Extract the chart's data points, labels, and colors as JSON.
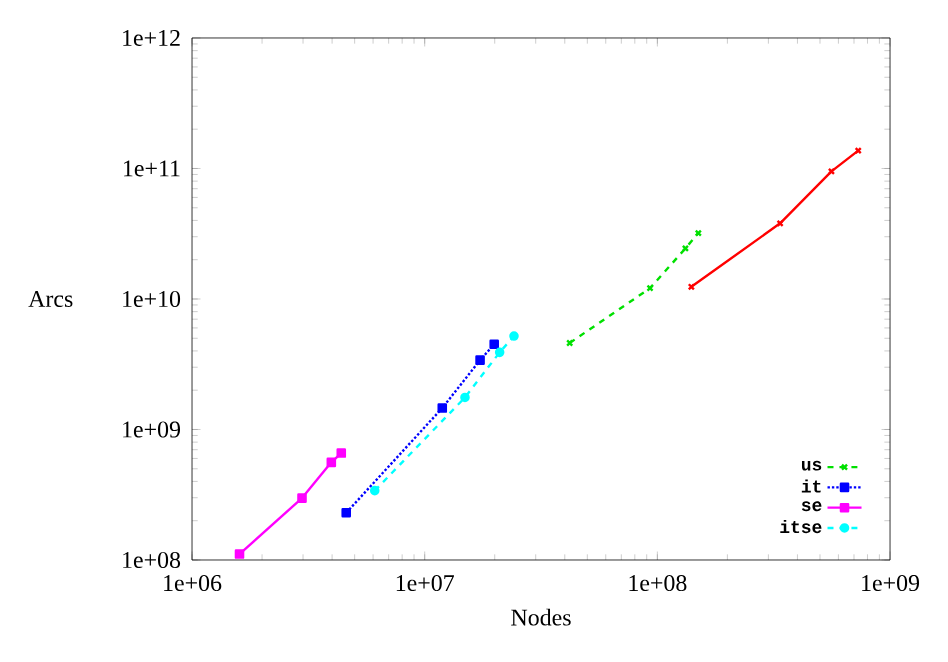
{
  "chart_data": {
    "type": "line",
    "xlabel": "Nodes",
    "ylabel": "Arcs",
    "log": "xy",
    "xlim": [
      1000000,
      1000000000
    ],
    "ylim": [
      100000000,
      1000000000000
    ],
    "xticks": [
      {
        "value": 1000000,
        "label": "1e+06"
      },
      {
        "value": 10000000,
        "label": "1e+07"
      },
      {
        "value": 100000000,
        "label": "1e+08"
      },
      {
        "value": 1000000000,
        "label": "1e+09"
      }
    ],
    "yticks": [
      {
        "value": 100000000,
        "label": "1e+08"
      },
      {
        "value": 1000000000,
        "label": "1e+09"
      },
      {
        "value": 10000000000,
        "label": "1e+10"
      },
      {
        "value": 100000000000,
        "label": "1e+11"
      },
      {
        "value": 1000000000000,
        "label": "1e+12"
      }
    ],
    "grid": false,
    "legend": "bottom right",
    "series": [
      {
        "color": "#ff0000",
        "marker": "cross",
        "line_style": "solid",
        "x": [
          140000000,
          337000000,
          560000000,
          730000000
        ],
        "values": [
          12400000000,
          38000000000,
          95000000000,
          137000000000
        ]
      },
      {
        "name": "us",
        "color": "#00e000",
        "marker": "cross",
        "line_style": "dashed",
        "x": [
          42000000,
          93000000,
          132000000,
          150000000
        ],
        "values": [
          4600000000,
          12100000000,
          24400000000,
          32000000000
        ]
      },
      {
        "name": "it",
        "color": "#0000ff",
        "marker": "square",
        "line_style": "dotted",
        "x": [
          4600000,
          11900000,
          17300000,
          19900000
        ],
        "values": [
          230000000,
          1460000000,
          3400000000,
          4500000000
        ]
      },
      {
        "name": "se",
        "color": "#ff00ff",
        "marker": "square",
        "line_style": "solid",
        "x": [
          1600000,
          2970000,
          3970000,
          4380000
        ],
        "values": [
          111000000,
          298000000,
          560000000,
          660000000
        ]
      },
      {
        "name": "itse",
        "color": "#00ffff",
        "marker": "circle",
        "line_style": "dashed",
        "x": [
          6100000,
          14900000,
          21000000,
          24200000
        ],
        "values": [
          340000000,
          1760000000,
          3900000000,
          5200000000
        ]
      }
    ]
  }
}
